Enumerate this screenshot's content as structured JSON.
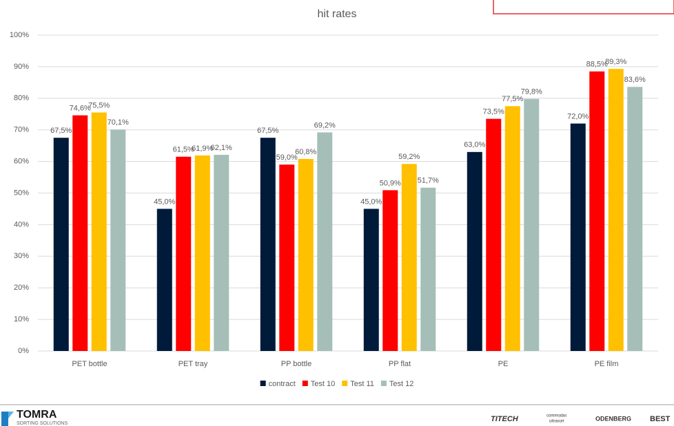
{
  "chart_data": {
    "type": "bar",
    "title": "hit rates",
    "categories": [
      "PET bottle",
      "PET tray",
      "PP bottle",
      "PP flat",
      "PE",
      "PE film"
    ],
    "series": [
      {
        "name": "contract",
        "color": "#001a3a",
        "values": [
          67.5,
          45.0,
          67.5,
          45.0,
          63.0,
          72.0
        ],
        "value_labels": [
          "67,5%",
          "45,0%",
          "67,5%",
          "45,0%",
          "63,0%",
          "72,0%"
        ]
      },
      {
        "name": "Test 10",
        "color": "#ff0000",
        "values": [
          74.6,
          61.5,
          59.0,
          50.9,
          73.5,
          88.5
        ],
        "value_labels": [
          "74,6%",
          "61,5%",
          "59,0%",
          "50,9%",
          "73,5%",
          "88,5%"
        ]
      },
      {
        "name": "Test 11",
        "color": "#ffc000",
        "values": [
          75.5,
          61.9,
          60.8,
          59.2,
          77.5,
          89.3
        ],
        "value_labels": [
          "75,5%",
          "61,9%",
          "60,8%",
          "59,2%",
          "77,5%",
          "89,3%"
        ]
      },
      {
        "name": "Test 12",
        "color": "#a5bfb8",
        "values": [
          70.1,
          62.1,
          69.2,
          51.7,
          79.8,
          83.6
        ],
        "value_labels": [
          "70,1%",
          "62,1%",
          "69,2%",
          "51,7%",
          "79,8%",
          "83,6%"
        ]
      }
    ],
    "ylim": [
      0,
      100
    ],
    "yticks": [
      {
        "value": 0,
        "label": "0%"
      },
      {
        "value": 10,
        "label": "10%"
      },
      {
        "value": 20,
        "label": "20%"
      },
      {
        "value": 30,
        "label": "30%"
      },
      {
        "value": 40,
        "label": "40%"
      },
      {
        "value": 50,
        "label": "50%"
      },
      {
        "value": 60,
        "label": "60%"
      },
      {
        "value": 70,
        "label": "70%"
      },
      {
        "value": 80,
        "label": "80%"
      },
      {
        "value": 90,
        "label": "90%"
      },
      {
        "value": 100,
        "label": "100%"
      }
    ],
    "grid": true,
    "legend": "bottom"
  },
  "footer": {
    "logo": "TOMRA",
    "logo_sub": "SORTING SOLUTIONS",
    "partners": [
      "TITECH",
      "commodas",
      "ultrasort",
      "ODENBERG",
      "BEST"
    ]
  }
}
